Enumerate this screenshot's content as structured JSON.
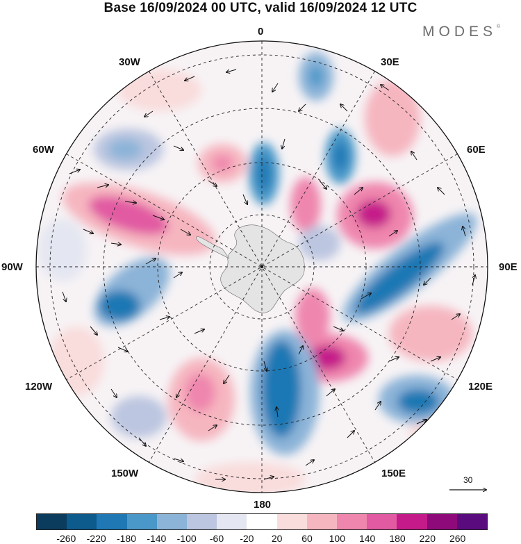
{
  "title": "Base 16/09/2024 00 UTC, valid 16/09/2024 12 UTC",
  "brand": "MODES",
  "brand_mark": "©",
  "longitudes": {
    "lon_0": "0",
    "lon_30e": "30E",
    "lon_60e": "60E",
    "lon_90e": "90E",
    "lon_120e": "120E",
    "lon_150e": "150E",
    "lon_180": "180",
    "lon_150w": "150W",
    "lon_120w": "120W",
    "lon_90w": "90W",
    "lon_60w": "60W",
    "lon_30w": "30W"
  },
  "reference_vector": {
    "value": "30"
  },
  "colorbar": {
    "colors": [
      "#0b3c5d",
      "#0d5a8c",
      "#1f78b4",
      "#4a98c9",
      "#8cb4d8",
      "#bcc6e0",
      "#e4e6f1",
      "#ffffff",
      "#f9dcdc",
      "#f6b6c0",
      "#ef86ad",
      "#e15aa2",
      "#c51b8a",
      "#8e0a7a",
      "#5a0b7e"
    ],
    "ticks": [
      "-260",
      "-220",
      "-180",
      "-140",
      "-100",
      "-60",
      "-20",
      "20",
      "60",
      "100",
      "140",
      "180",
      "220",
      "260"
    ]
  },
  "map": {
    "projection": "south polar stereographic",
    "field": "shaded anomaly with wind vectors",
    "coastline": "Antarctica"
  }
}
